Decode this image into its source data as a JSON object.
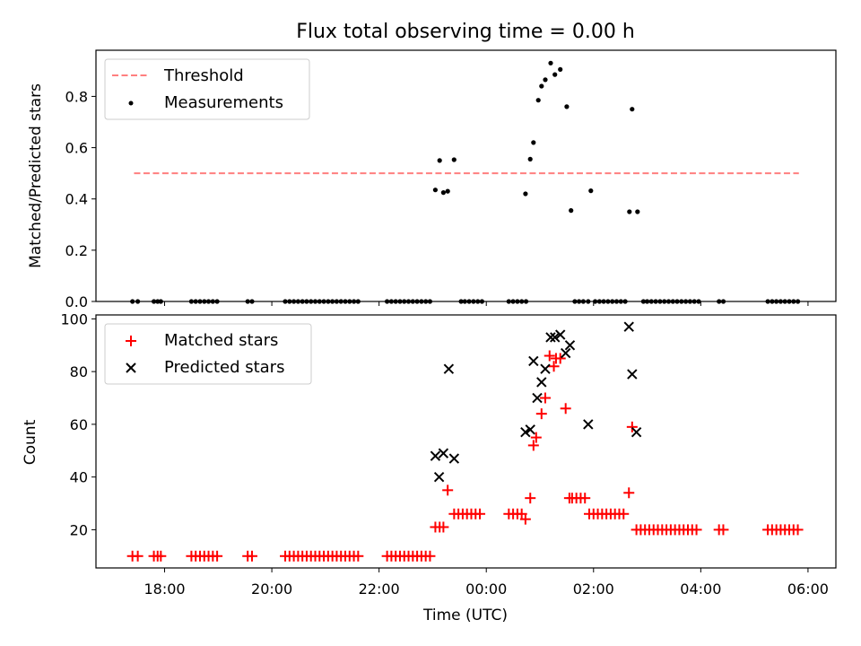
{
  "title": "Flux total observing time = 0.00 h",
  "colors": {
    "threshold": "#ff7f7f",
    "measurements": "#000000",
    "matched": "#ff0000",
    "predicted": "#000000",
    "axes": "#000000",
    "legend_border": "#cccccc"
  },
  "chart_data": [
    {
      "type": "scatter",
      "panel": "top",
      "title": "Flux total observing time = 0.00 h",
      "xlabel": "",
      "ylabel": "Matched/Predicted stars",
      "xlim": [
        16.72,
        30.52
      ],
      "ylim": [
        0.0,
        0.98
      ],
      "yticks": [
        0.0,
        0.2,
        0.4,
        0.6,
        0.8
      ],
      "ytick_labels": [
        "0.0",
        "0.2",
        "0.4",
        "0.6",
        "0.8"
      ],
      "xticks": [
        18,
        20,
        22,
        24,
        26,
        28,
        30
      ],
      "grid": false,
      "legend": {
        "position": "upper left",
        "entries": [
          {
            "label": "Threshold",
            "marker": "dashed-line"
          },
          {
            "label": "Measurements",
            "marker": "dot"
          }
        ]
      },
      "threshold": {
        "name": "Threshold",
        "y": 0.5,
        "x_start": 17.43,
        "x_end": 29.83
      },
      "series": [
        {
          "name": "Measurements",
          "x": [
            17.4,
            17.5,
            17.8,
            17.87,
            17.93,
            18.5,
            18.58,
            18.66,
            18.74,
            18.82,
            18.9,
            18.98,
            19.55,
            19.63,
            20.25,
            20.33,
            20.41,
            20.49,
            20.57,
            20.65,
            20.73,
            20.81,
            20.89,
            20.97,
            21.05,
            21.13,
            21.21,
            21.29,
            21.37,
            21.45,
            21.53,
            21.61,
            22.15,
            22.23,
            22.31,
            22.39,
            22.47,
            22.55,
            22.63,
            22.71,
            22.79,
            22.87,
            22.95,
            23.05,
            23.13,
            23.2,
            23.28,
            23.4,
            23.53,
            23.6,
            23.68,
            23.76,
            23.84,
            23.92,
            24.42,
            24.5,
            24.58,
            24.66,
            24.74,
            24.73,
            24.82,
            24.88,
            24.97,
            25.03,
            25.1,
            25.2,
            25.28,
            25.38,
            25.5,
            25.58,
            25.65,
            25.73,
            25.81,
            25.9,
            25.95,
            26.03,
            26.11,
            26.19,
            26.27,
            26.35,
            26.43,
            26.51,
            26.59,
            26.67,
            26.72,
            26.82,
            26.93,
            27.0,
            27.08,
            27.16,
            27.24,
            27.32,
            27.4,
            27.48,
            27.56,
            27.64,
            27.72,
            27.8,
            27.88,
            27.96,
            28.34,
            28.42,
            29.25,
            29.33,
            29.41,
            29.49,
            29.57,
            29.65,
            29.73,
            29.81
          ],
          "y": [
            0,
            0,
            0,
            0,
            0,
            0,
            0,
            0,
            0,
            0,
            0,
            0,
            0,
            0,
            0,
            0,
            0,
            0,
            0,
            0,
            0,
            0,
            0,
            0,
            0,
            0,
            0,
            0,
            0,
            0,
            0,
            0,
            0,
            0,
            0,
            0,
            0,
            0,
            0,
            0,
            0,
            0,
            0,
            0.435,
            0.55,
            0.425,
            0.43,
            0.553,
            0,
            0,
            0,
            0,
            0,
            0,
            0,
            0,
            0,
            0,
            0,
            0.42,
            0.555,
            0.62,
            0.785,
            0.84,
            0.865,
            0.93,
            0.885,
            0.905,
            0.76,
            0.355,
            0,
            0,
            0,
            0,
            0.432,
            0,
            0,
            0,
            0,
            0,
            0,
            0,
            0,
            0.35,
            0.75,
            0.35,
            0,
            0,
            0,
            0,
            0,
            0,
            0,
            0,
            0,
            0,
            0,
            0,
            0,
            0,
            0,
            0,
            0,
            0,
            0,
            0,
            0,
            0,
            0,
            0
          ]
        }
      ]
    },
    {
      "type": "scatter",
      "panel": "bottom",
      "title": "",
      "xlabel": "Time (UTC)",
      "ylabel": "Count",
      "xlim": [
        16.72,
        30.52
      ],
      "ylim": [
        5.5,
        101.5
      ],
      "yticks": [
        20,
        40,
        60,
        80,
        100
      ],
      "ytick_labels": [
        "20",
        "40",
        "60",
        "80",
        "100"
      ],
      "xticks": [
        18,
        20,
        22,
        24,
        26,
        28,
        30
      ],
      "xtick_labels": [
        "18:00",
        "20:00",
        "22:00",
        "00:00",
        "02:00",
        "04:00",
        "06:00"
      ],
      "grid": false,
      "legend": {
        "position": "upper left",
        "entries": [
          {
            "label": "Matched stars",
            "marker": "plus"
          },
          {
            "label": "Predicted stars",
            "marker": "x"
          }
        ]
      },
      "series": [
        {
          "name": "Matched stars",
          "marker": "plus",
          "x": [
            17.4,
            17.5,
            17.8,
            17.87,
            17.93,
            18.5,
            18.58,
            18.66,
            18.74,
            18.82,
            18.9,
            18.98,
            19.55,
            19.63,
            20.25,
            20.33,
            20.41,
            20.49,
            20.57,
            20.65,
            20.73,
            20.81,
            20.89,
            20.97,
            21.05,
            21.13,
            21.21,
            21.29,
            21.37,
            21.45,
            21.53,
            21.61,
            22.15,
            22.23,
            22.31,
            22.39,
            22.47,
            22.55,
            22.63,
            22.71,
            22.79,
            22.87,
            22.95,
            23.05,
            23.13,
            23.2,
            23.28,
            23.4,
            23.48,
            23.56,
            23.64,
            23.72,
            23.8,
            23.88,
            24.42,
            24.5,
            24.58,
            24.66,
            24.73,
            24.82,
            24.88,
            24.93,
            25.03,
            25.1,
            25.18,
            25.26,
            25.3,
            25.38,
            25.48,
            25.55,
            25.6,
            25.68,
            25.76,
            25.84,
            25.92,
            26.0,
            26.08,
            26.16,
            26.24,
            26.32,
            26.4,
            26.48,
            26.56,
            26.66,
            26.72,
            26.8,
            26.88,
            26.96,
            27.04,
            27.12,
            27.2,
            27.28,
            27.36,
            27.44,
            27.52,
            27.6,
            27.68,
            27.76,
            27.84,
            27.92,
            28.34,
            28.42,
            29.25,
            29.33,
            29.41,
            29.49,
            29.57,
            29.65,
            29.73,
            29.81
          ],
          "y": [
            10,
            10,
            10,
            10,
            10,
            10,
            10,
            10,
            10,
            10,
            10,
            10,
            10,
            10,
            10,
            10,
            10,
            10,
            10,
            10,
            10,
            10,
            10,
            10,
            10,
            10,
            10,
            10,
            10,
            10,
            10,
            10,
            10,
            10,
            10,
            10,
            10,
            10,
            10,
            10,
            10,
            10,
            10,
            21,
            21,
            21,
            35,
            26,
            26,
            26,
            26,
            26,
            26,
            26,
            26,
            26,
            26,
            26,
            24,
            32,
            52,
            55,
            64,
            70,
            86,
            82,
            85,
            85,
            66,
            32,
            32,
            32,
            32,
            32,
            26,
            26,
            26,
            26,
            26,
            26,
            26,
            26,
            26,
            34,
            59,
            20,
            20,
            20,
            20,
            20,
            20,
            20,
            20,
            20,
            20,
            20,
            20,
            20,
            20,
            20,
            20,
            20,
            20,
            20,
            20,
            20,
            20,
            20,
            20,
            20
          ]
        },
        {
          "name": "Predicted stars",
          "marker": "x",
          "x": [
            23.05,
            23.12,
            23.2,
            23.3,
            23.4,
            24.73,
            24.82,
            24.88,
            24.95,
            25.03,
            25.1,
            25.2,
            25.28,
            25.38,
            25.48,
            25.56,
            25.9,
            26.66,
            26.72,
            26.8
          ],
          "y": [
            48,
            40,
            49,
            81,
            47,
            57,
            58,
            84,
            70,
            76,
            81,
            93,
            93,
            94,
            87,
            90,
            60,
            97,
            79,
            57
          ]
        }
      ]
    }
  ]
}
